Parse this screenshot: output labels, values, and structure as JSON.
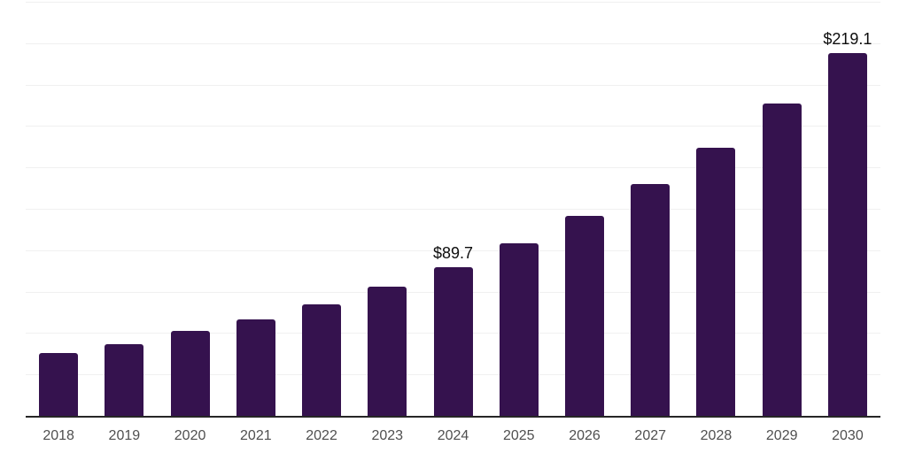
{
  "chart_data": {
    "type": "bar",
    "title": "",
    "xlabel": "",
    "ylabel": "",
    "categories": [
      "2018",
      "2019",
      "2020",
      "2021",
      "2022",
      "2023",
      "2024",
      "2025",
      "2026",
      "2027",
      "2028",
      "2029",
      "2030"
    ],
    "values": [
      38.0,
      43.5,
      51.1,
      58.3,
      67.3,
      78.0,
      89.7,
      104.3,
      120.9,
      139.8,
      162.1,
      188.8,
      219.1
    ],
    "labeled_points": [
      {
        "category": "2024",
        "label": "$89.7"
      },
      {
        "category": "2030",
        "label": "$219.1"
      }
    ],
    "ylim": [
      0,
      250
    ],
    "gridline_step": 25,
    "grid": "horizontal",
    "legend": "none",
    "y_axis_labels_visible": false,
    "colors": {
      "bar": "#35124E",
      "gridline": "#f0f0f0",
      "axis_line": "#262626",
      "tick_label": "#4f4f4f",
      "data_label": "#0d0d0d",
      "background": "#ffffff"
    }
  }
}
